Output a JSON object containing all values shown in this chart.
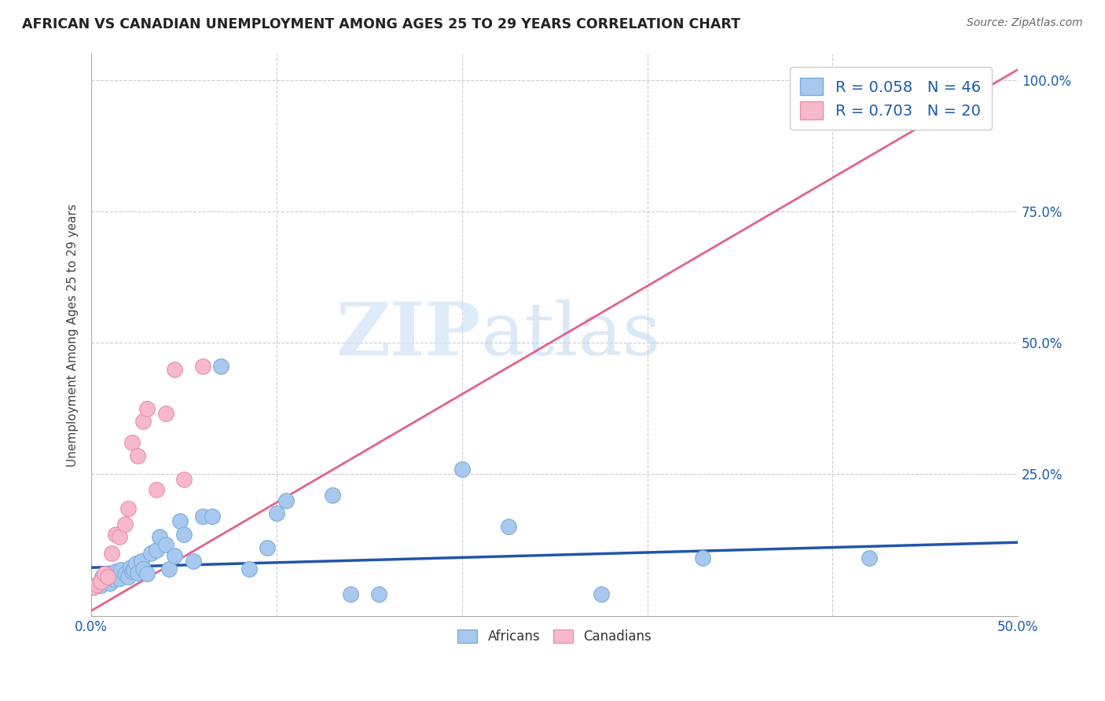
{
  "title": "AFRICAN VS CANADIAN UNEMPLOYMENT AMONG AGES 25 TO 29 YEARS CORRELATION CHART",
  "source": "Source: ZipAtlas.com",
  "ylabel": "Unemployment Among Ages 25 to 29 years",
  "xlim": [
    0.0,
    0.5
  ],
  "ylim": [
    -0.02,
    1.05
  ],
  "xticks": [
    0.0,
    0.5
  ],
  "yticks": [
    0.25,
    0.5,
    0.75,
    1.0
  ],
  "xticklabels": [
    "0.0%",
    "50.0%"
  ],
  "yticklabels": [
    "25.0%",
    "50.0%",
    "75.0%",
    "100.0%"
  ],
  "african_color": "#a8c8f0",
  "african_edge_color": "#7aadd8",
  "canadian_color": "#f8b8cc",
  "canadian_edge_color": "#e890a8",
  "african_line_color": "#2255aa",
  "canadian_line_color": "#e8608a",
  "R_african": 0.058,
  "N_african": 46,
  "R_canadian": 0.703,
  "N_canadian": 20,
  "watermark_zip": "ZIP",
  "watermark_atlas": "atlas",
  "africans_x": [
    0.001,
    0.003,
    0.005,
    0.006,
    0.008,
    0.009,
    0.01,
    0.011,
    0.012,
    0.013,
    0.015,
    0.016,
    0.018,
    0.02,
    0.021,
    0.022,
    0.023,
    0.024,
    0.025,
    0.027,
    0.028,
    0.03,
    0.032,
    0.035,
    0.037,
    0.04,
    0.042,
    0.045,
    0.048,
    0.05,
    0.055,
    0.06,
    0.065,
    0.07,
    0.085,
    0.095,
    0.1,
    0.105,
    0.13,
    0.14,
    0.155,
    0.2,
    0.225,
    0.275,
    0.33,
    0.42
  ],
  "africans_y": [
    0.035,
    0.04,
    0.038,
    0.055,
    0.048,
    0.06,
    0.042,
    0.058,
    0.05,
    0.065,
    0.052,
    0.068,
    0.06,
    0.055,
    0.072,
    0.065,
    0.068,
    0.08,
    0.062,
    0.085,
    0.07,
    0.06,
    0.1,
    0.105,
    0.13,
    0.115,
    0.07,
    0.095,
    0.16,
    0.135,
    0.085,
    0.17,
    0.17,
    0.455,
    0.07,
    0.11,
    0.175,
    0.2,
    0.21,
    0.022,
    0.022,
    0.26,
    0.15,
    0.022,
    0.09,
    0.09
  ],
  "canadians_x": [
    0.001,
    0.003,
    0.005,
    0.007,
    0.009,
    0.011,
    0.013,
    0.015,
    0.018,
    0.02,
    0.022,
    0.025,
    0.028,
    0.03,
    0.035,
    0.04,
    0.045,
    0.05,
    0.06,
    0.415
  ],
  "canadians_y": [
    0.035,
    0.04,
    0.045,
    0.06,
    0.055,
    0.1,
    0.135,
    0.13,
    0.155,
    0.185,
    0.31,
    0.285,
    0.35,
    0.375,
    0.22,
    0.365,
    0.45,
    0.24,
    0.455,
    0.96
  ],
  "af_line_x0": 0.0,
  "af_line_y0": 0.072,
  "af_line_x1": 0.5,
  "af_line_y1": 0.12,
  "ca_line_x0": 0.0,
  "ca_line_y0": -0.01,
  "ca_line_x1": 0.5,
  "ca_line_y1": 1.02
}
